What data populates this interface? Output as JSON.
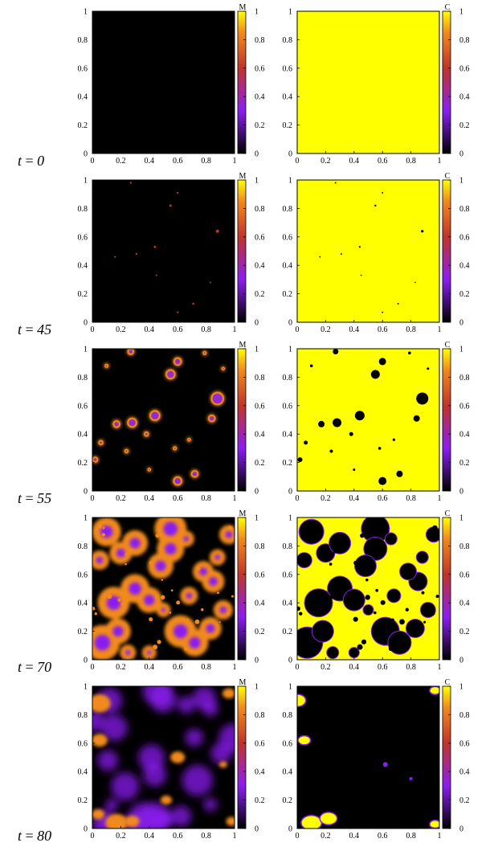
{
  "figure": {
    "rows": [
      {
        "t_label": "t",
        "t_value": "0"
      },
      {
        "t_label": "t",
        "t_value": "45"
      },
      {
        "t_label": "t",
        "t_value": "55"
      },
      {
        "t_label": "t",
        "t_value": "70"
      },
      {
        "t_label": "t",
        "t_value": "80"
      }
    ],
    "columns": [
      {
        "colorbar_title": "M"
      },
      {
        "colorbar_title": "C"
      }
    ],
    "axis_ticks": [
      "0",
      "0.2",
      "0.4",
      "0.6",
      "0.8",
      "1"
    ],
    "colorbar_ticks": [
      "0",
      "0.2",
      "0.4",
      "0.6",
      "0.8",
      "1"
    ]
  },
  "colors": {
    "black": "#000000",
    "purple": "#8b1ef0",
    "red": "#c0352a",
    "orange": "#f08a1e",
    "yellow": "#ffff00"
  },
  "chart_data": {
    "type": "heatmap",
    "x_range": [
      0,
      1
    ],
    "y_range": [
      0,
      1
    ],
    "color_range": [
      0,
      1
    ],
    "panels": [
      {
        "row": 0,
        "field": "M",
        "state": "uniform 0"
      },
      {
        "row": 0,
        "field": "C",
        "state": "uniform 1"
      },
      {
        "row": 1,
        "field": "M",
        "state": "isolated small spots"
      },
      {
        "row": 1,
        "field": "C",
        "state": "nearly uniform 1 with small dark spots"
      },
      {
        "row": 2,
        "field": "M",
        "state": "ring-shaped spots"
      },
      {
        "row": 2,
        "field": "C",
        "state": "dark holes in yellow"
      },
      {
        "row": 3,
        "field": "M",
        "state": "merged ring clusters"
      },
      {
        "row": 3,
        "field": "C",
        "state": "large dark regions in yellow"
      },
      {
        "row": 4,
        "field": "M",
        "state": "diffuse purple network"
      },
      {
        "row": 4,
        "field": "C",
        "state": "mostly 0 with yellow corner patches"
      }
    ]
  }
}
